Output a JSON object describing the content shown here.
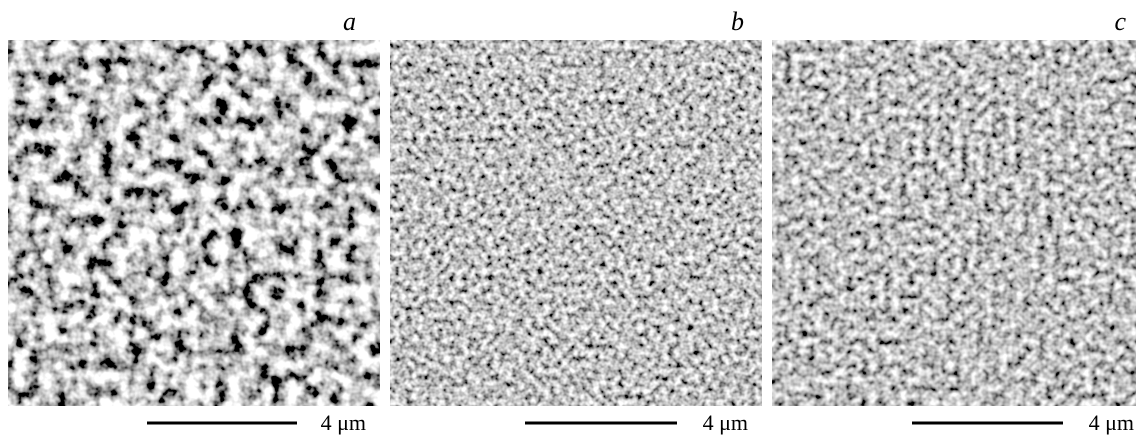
{
  "panels": [
    {
      "label": "a",
      "scale_bar": "4 μm"
    },
    {
      "label": "b",
      "scale_bar": "4 μm"
    },
    {
      "label": "c",
      "scale_bar": "4 μm"
    }
  ]
}
